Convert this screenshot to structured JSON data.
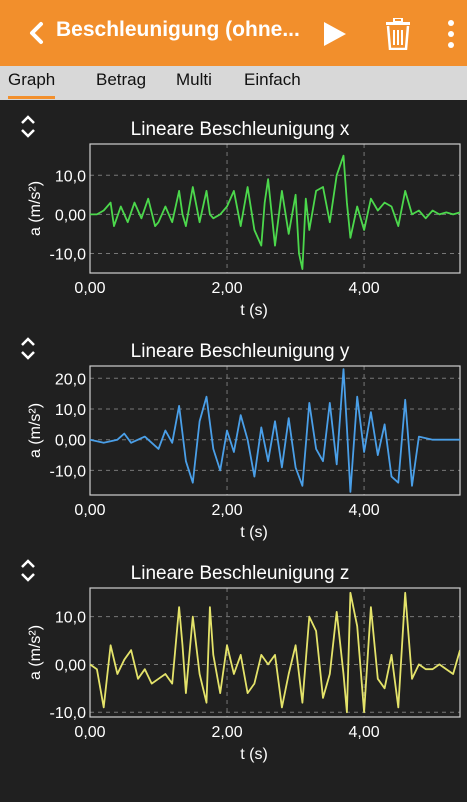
{
  "header": {
    "title": "Beschleunigung (ohne...",
    "accent": "#f28f2c"
  },
  "tabs": [
    {
      "label": "Graph",
      "active": true
    },
    {
      "label": "Betrag",
      "active": false
    },
    {
      "label": "Multi",
      "active": false
    },
    {
      "label": "Einfach",
      "active": false
    }
  ],
  "chart_data": [
    {
      "type": "line",
      "title": "Lineare Beschleunigung x",
      "xlabel": "t (s)",
      "ylabel": "a (m/s²)",
      "xlim": [
        0,
        5.4
      ],
      "ylim": [
        -15,
        18
      ],
      "xticks": [
        0,
        2,
        4
      ],
      "xtick_labels": [
        "0,00",
        "2,00",
        "4,00"
      ],
      "yticks": [
        10,
        0,
        -10
      ],
      "ytick_labels": [
        "10,0",
        "0,00",
        "-10,0"
      ],
      "grid": true,
      "color": "#4cd84c",
      "x": [
        0,
        0.1,
        0.2,
        0.3,
        0.35,
        0.45,
        0.55,
        0.65,
        0.75,
        0.85,
        0.95,
        1.0,
        1.1,
        1.2,
        1.3,
        1.35,
        1.4,
        1.5,
        1.6,
        1.7,
        1.75,
        1.8,
        1.9,
        2.0,
        2.1,
        2.2,
        2.3,
        2.4,
        2.5,
        2.55,
        2.6,
        2.7,
        2.8,
        2.9,
        3.0,
        3.05,
        3.1,
        3.15,
        3.2,
        3.3,
        3.4,
        3.5,
        3.6,
        3.7,
        3.75,
        3.8,
        3.9,
        4.0,
        4.1,
        4.2,
        4.3,
        4.4,
        4.5,
        4.6,
        4.7,
        4.8,
        4.9,
        5.0,
        5.1,
        5.2,
        5.3,
        5.4
      ],
      "values": [
        0,
        0,
        1,
        3,
        -3,
        2,
        -2,
        3,
        -1,
        4,
        -3,
        -2,
        2,
        -2,
        6,
        0,
        -3,
        7,
        -2,
        6,
        0,
        -1,
        0,
        2,
        6,
        -3,
        7,
        -4,
        -8,
        3,
        9,
        -8,
        6,
        -5,
        5,
        -10,
        -14,
        4,
        -4,
        6,
        7,
        -2,
        10,
        15,
        3,
        -6,
        2,
        -4,
        4,
        1,
        3,
        2,
        -3,
        6,
        0,
        1,
        -1,
        1,
        0,
        0.5,
        0,
        0.5
      ]
    },
    {
      "type": "line",
      "title": "Lineare Beschleunigung y",
      "xlabel": "t (s)",
      "ylabel": "a (m/s²)",
      "xlim": [
        0,
        5.4
      ],
      "ylim": [
        -18,
        24
      ],
      "xticks": [
        0,
        2,
        4
      ],
      "xtick_labels": [
        "0,00",
        "2,00",
        "4,00"
      ],
      "yticks": [
        20,
        10,
        0,
        -10
      ],
      "ytick_labels": [
        "20,0",
        "10,0",
        "0,00",
        "-10,0"
      ],
      "grid": true,
      "color": "#4a9fe8",
      "x": [
        0,
        0.2,
        0.4,
        0.5,
        0.6,
        0.8,
        1.0,
        1.1,
        1.2,
        1.3,
        1.4,
        1.5,
        1.6,
        1.7,
        1.8,
        1.9,
        2.0,
        2.1,
        2.2,
        2.3,
        2.4,
        2.5,
        2.6,
        2.7,
        2.8,
        2.9,
        3.0,
        3.1,
        3.2,
        3.3,
        3.4,
        3.5,
        3.6,
        3.7,
        3.75,
        3.8,
        3.9,
        4.0,
        4.1,
        4.2,
        4.3,
        4.4,
        4.5,
        4.6,
        4.7,
        4.8,
        5.0,
        5.2,
        5.4
      ],
      "values": [
        0,
        -1,
        0,
        2,
        -1,
        1,
        -3,
        3,
        -1,
        11,
        -7,
        -14,
        6,
        14,
        -3,
        -10,
        3,
        -4,
        8,
        0,
        -12,
        4,
        -7,
        6,
        -9,
        7,
        -9,
        -15,
        12,
        -3,
        -7,
        12,
        -8,
        23,
        4,
        -17,
        14,
        -4,
        9,
        -5,
        5,
        -12,
        -14,
        13,
        -15,
        1,
        0,
        0,
        0
      ]
    },
    {
      "type": "line",
      "title": "Lineare Beschleunigung z",
      "xlabel": "t (s)",
      "ylabel": "a (m/s²)",
      "xlim": [
        0,
        5.4
      ],
      "ylim": [
        -11,
        16
      ],
      "xticks": [
        0,
        2,
        4
      ],
      "xtick_labels": [
        "0,00",
        "2,00",
        "4,00"
      ],
      "yticks": [
        10,
        0,
        -10
      ],
      "ytick_labels": [
        "10,0",
        "0,00",
        "-10,0"
      ],
      "grid": true,
      "color": "#e4e36a",
      "x": [
        0,
        0.1,
        0.2,
        0.3,
        0.4,
        0.5,
        0.6,
        0.7,
        0.8,
        0.9,
        1.0,
        1.1,
        1.2,
        1.3,
        1.35,
        1.4,
        1.5,
        1.6,
        1.7,
        1.75,
        1.8,
        1.9,
        2.0,
        2.1,
        2.2,
        2.3,
        2.4,
        2.5,
        2.6,
        2.7,
        2.8,
        2.9,
        3.0,
        3.1,
        3.2,
        3.3,
        3.4,
        3.5,
        3.6,
        3.7,
        3.75,
        3.8,
        3.9,
        4.0,
        4.1,
        4.2,
        4.3,
        4.4,
        4.5,
        4.6,
        4.7,
        4.8,
        4.9,
        5.0,
        5.1,
        5.2,
        5.3,
        5.4
      ],
      "values": [
        0,
        -1,
        -9,
        4,
        -2,
        1,
        3,
        -3,
        -1,
        -4,
        -3,
        -2,
        -4,
        12,
        4,
        -6,
        10,
        -2,
        -8,
        12,
        2,
        -6,
        4,
        -2,
        2,
        -6,
        -4,
        2,
        0,
        2,
        -9,
        -2,
        4,
        -8,
        10,
        7,
        -7,
        -2,
        11,
        -2,
        -10,
        15,
        8,
        -10,
        12,
        -3,
        -5,
        2,
        -9,
        15,
        -3,
        0,
        -1,
        -1,
        0,
        -1,
        -2,
        3
      ]
    }
  ]
}
